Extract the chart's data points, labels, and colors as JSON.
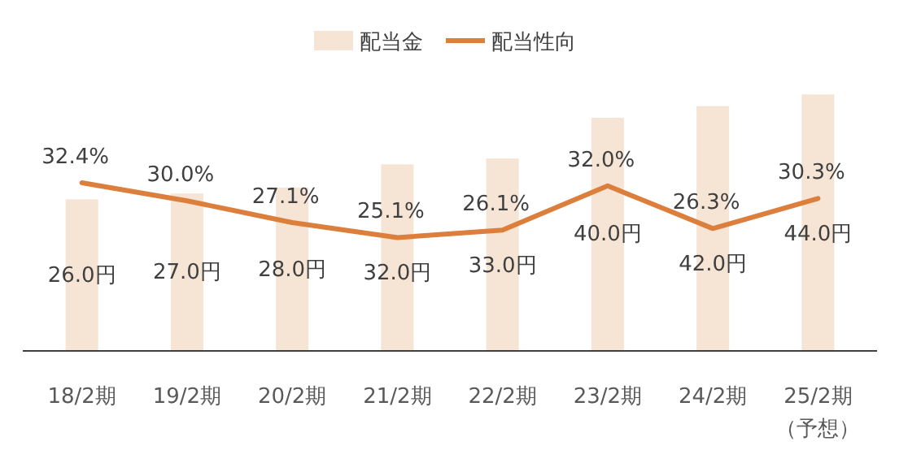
{
  "chart_data": {
    "type": "bar",
    "categories": [
      "18/2期",
      "19/2期",
      "20/2期",
      "21/2期",
      "22/2期",
      "23/2期",
      "24/2期",
      "25/2期（予想）"
    ],
    "series": [
      {
        "name": "配当金",
        "color": "#f6e4d4",
        "values": [
          26.0,
          27.0,
          28.0,
          32.0,
          33.0,
          40.0,
          42.0,
          44.0
        ],
        "value_labels": [
          "26.0円",
          "27.0円",
          "28.0円",
          "32.0円",
          "33.0円",
          "40.0円",
          "42.0円",
          "44.0円"
        ]
      },
      {
        "name": "配当性向",
        "type": "line",
        "axis": "y2",
        "color": "#dc7f3c",
        "values": [
          32.4,
          30.0,
          27.1,
          25.1,
          26.1,
          32.0,
          26.3,
          30.3
        ],
        "value_labels": [
          "32.4%",
          "30.0%",
          "27.1%",
          "25.1%",
          "26.1%",
          "32.0%",
          "26.3%",
          "30.3%"
        ]
      }
    ],
    "legend": "top",
    "marker": "none",
    "line_style": "solid",
    "tick_labels": "x"
  }
}
